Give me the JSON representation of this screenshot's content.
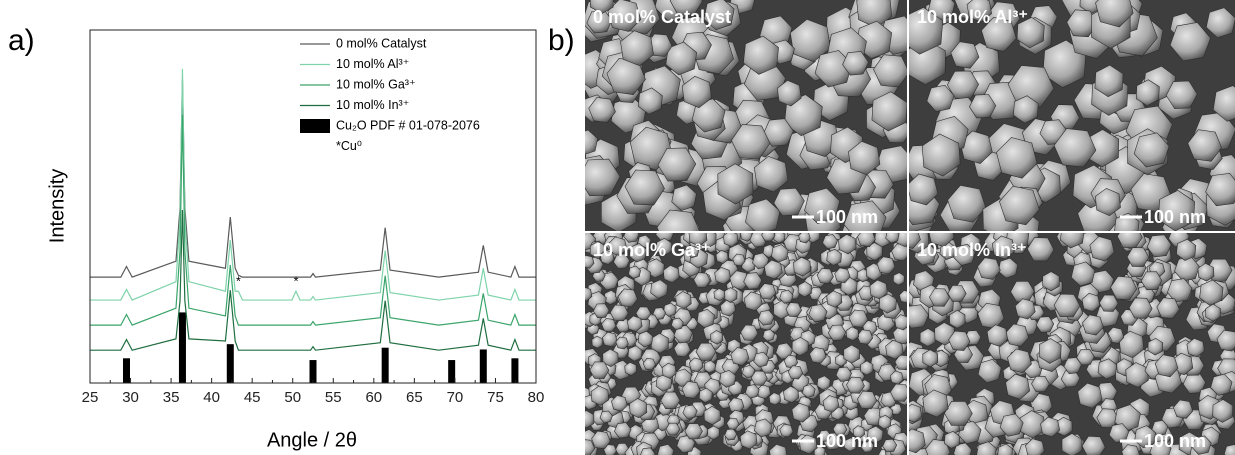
{
  "panel_a": {
    "label": "a)"
  },
  "chart_data": {
    "type": "line",
    "xlabel": "Angle / 2θ",
    "ylabel": "Intensity",
    "xlim": [
      25,
      80
    ],
    "xticks": [
      25,
      30,
      35,
      40,
      45,
      50,
      55,
      60,
      65,
      70,
      75,
      80
    ],
    "ylim": [
      0,
      100
    ],
    "x": [
      25,
      28.8,
      29.5,
      30.2,
      35.6,
      36.1,
      36.4,
      36.7,
      37.2,
      41.7,
      42.3,
      42.9,
      43.3,
      43.8,
      49.9,
      50.4,
      50.9,
      52.2,
      52.5,
      52.8,
      60.8,
      61.4,
      62,
      68,
      72.9,
      73.5,
      74.1,
      76.9,
      77.4,
      77.9,
      80
    ],
    "series": [
      {
        "name": "0 mol% Catalyst",
        "color": "#5a5a5a",
        "values": [
          30,
          30,
          33,
          30,
          34.5,
          49.6,
          86,
          49.6,
          34.5,
          32.5,
          47,
          32.5,
          30.5,
          30,
          30,
          30,
          30,
          30,
          31,
          30,
          32,
          44,
          32,
          30,
          31.4,
          39,
          31.4,
          30,
          33,
          30,
          30
        ]
      },
      {
        "name": "10 mol% Al³⁺",
        "color": "#7fd3aa",
        "values": [
          23.5,
          23.5,
          26.5,
          23.5,
          28.7,
          46.4,
          89,
          46.4,
          28.7,
          26,
          40.5,
          26,
          26,
          23.5,
          23.5,
          26,
          23.5,
          23.5,
          24.5,
          23.5,
          25.6,
          37.5,
          25.6,
          23.5,
          24.9,
          32.5,
          24.9,
          23.5,
          26.5,
          23.5,
          23.5
        ]
      },
      {
        "name": "10 mol% Ga³⁺",
        "color": "#3aa46a",
        "values": [
          16.4,
          16.4,
          19.4,
          16.4,
          21.2,
          37.3,
          76,
          37.3,
          21.2,
          19,
          33.4,
          19,
          16.4,
          16.4,
          16.4,
          16.4,
          16.4,
          16.4,
          17.4,
          16.4,
          18.5,
          30.4,
          18.5,
          16.4,
          17.8,
          25.4,
          17.8,
          16.4,
          19.4,
          16.4,
          16.4
        ]
      },
      {
        "name": "10 mol% In³⁺",
        "color": "#1f6e40",
        "values": [
          9.3,
          9.3,
          12.3,
          9.3,
          12.5,
          23.2,
          49,
          23.2,
          12.5,
          11.9,
          26.3,
          11.9,
          9.3,
          9.3,
          9.3,
          9.3,
          9.3,
          9.3,
          10.3,
          9.3,
          11.4,
          23.3,
          11.4,
          9.3,
          10.7,
          18.3,
          10.7,
          9.3,
          12.3,
          9.3,
          9.3
        ]
      }
    ],
    "reference": {
      "name": "Cu₂O PDF # 01-078-2076",
      "color": "#000000",
      "x": [
        29.5,
        36.4,
        42.3,
        52.5,
        61.4,
        69.6,
        73.5,
        77.4
      ],
      "values": [
        7,
        20,
        11,
        6.5,
        10,
        6.5,
        9.5,
        7
      ]
    },
    "legend_note": "*Cu⁰",
    "annotations": [
      {
        "text": "*",
        "x": 43.3
      },
      {
        "text": "*",
        "x": 50.4
      }
    ]
  },
  "panel_b": {
    "label": "b)",
    "images": [
      {
        "label": "0 mol% Catalyst",
        "scale_bar": "100 nm"
      },
      {
        "label": "10 mol% Al³⁺",
        "scale_bar": "100 nm"
      },
      {
        "label": "10 mol% Ga³⁺",
        "scale_bar": "100 nm"
      },
      {
        "label": "10 mol% In³⁺",
        "scale_bar": "100 nm"
      }
    ]
  }
}
